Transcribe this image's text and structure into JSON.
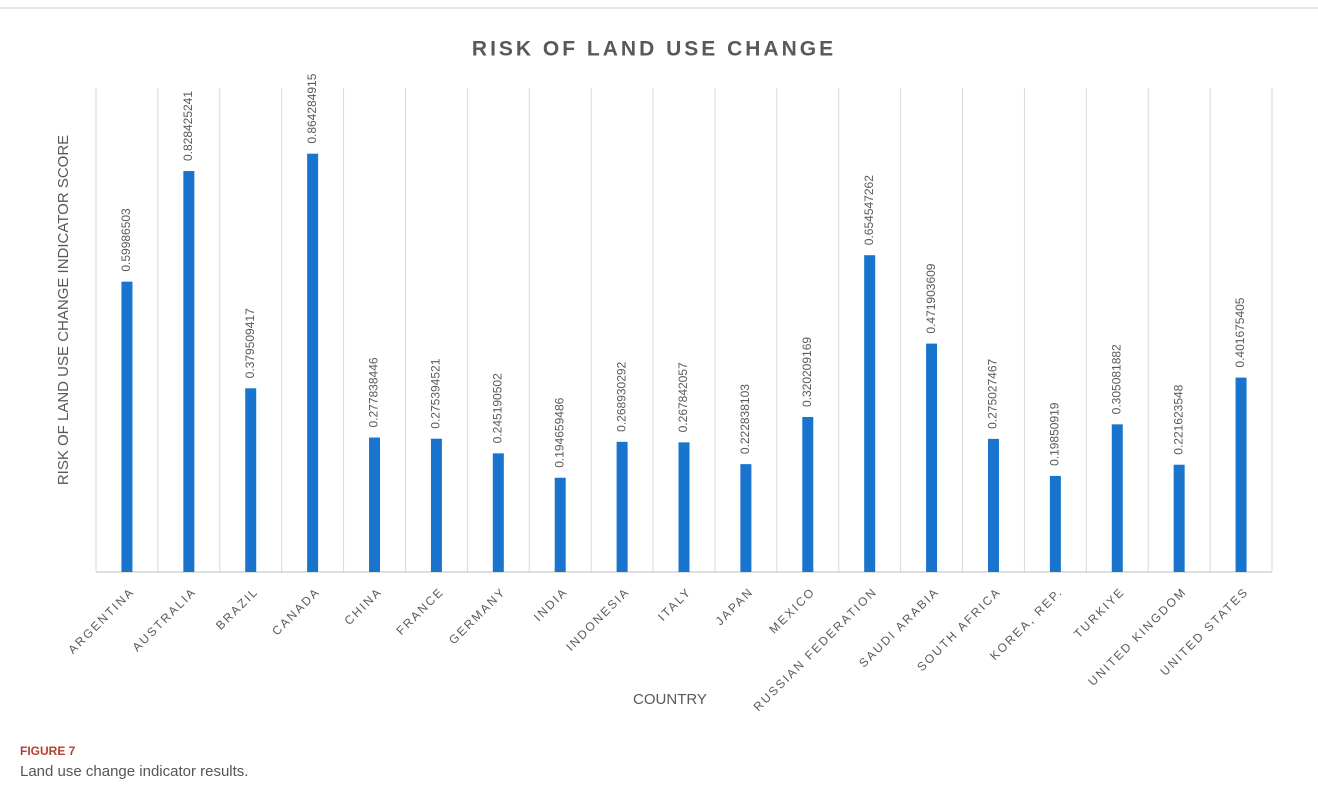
{
  "chart_data": {
    "type": "bar",
    "title": "RISK OF LAND USE CHANGE",
    "y_label": "RISK OF LAND USE CHANGE INDICATOR SCORE",
    "x_label": "COUNTRY",
    "categories": [
      "ARGENTINA",
      "AUSTRALIA",
      "BRAZIL",
      "CANADA",
      "CHINA",
      "FRANCE",
      "GERMANY",
      "INDIA",
      "INDONESIA",
      "ITALY",
      "JAPAN",
      "MEXICO",
      "RUSSIAN FEDERATION",
      "SAUDI ARABIA",
      "SOUTH AFRICA",
      "KOREA, REP.",
      "TURKIYE",
      "UNITED KINGDOM",
      "UNITED STATES"
    ],
    "values": [
      0.59986503,
      0.828425241,
      0.379509417,
      0.864284915,
      0.277838446,
      0.275394521,
      0.245190502,
      0.194659486,
      0.268930292,
      0.267842057,
      0.222838103,
      0.320209169,
      0.654547262,
      0.471903609,
      0.275027467,
      0.19850919,
      0.305081882,
      0.221623548,
      0.401675405
    ],
    "color": "#1874cd",
    "ylim": [
      0,
      1
    ],
    "grid": true
  },
  "figure": {
    "label": "FIGURE 7",
    "caption": "Land use change indicator results."
  }
}
